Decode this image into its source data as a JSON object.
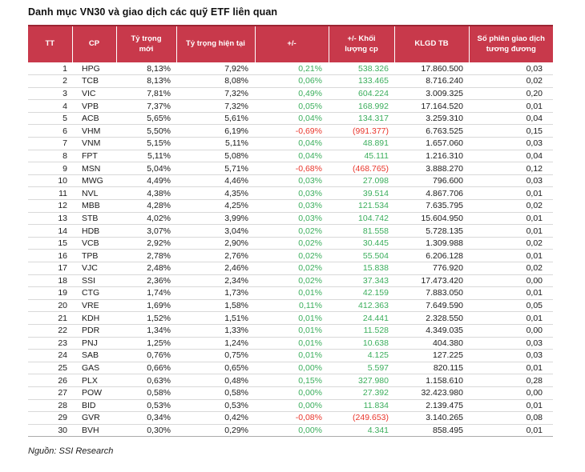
{
  "title": "Danh mục VN30 và giao dịch các quỹ ETF liên quan",
  "source_note": "Nguồn: SSI Research",
  "colors": {
    "header_bg": "#C8394B",
    "header_text": "#FFFFFF",
    "positive": "#3BAE5C",
    "negative": "#E9352B",
    "row_border": "#D9D9D9",
    "text": "#1A1A1A"
  },
  "table": {
    "columns": [
      "TT",
      "CP",
      "Tỷ trọng mới",
      "Tỷ trọng hiện tại",
      "+/-",
      "+/- Khối lượng cp",
      "KLGD TB",
      "Số phiên giao dịch tương đương"
    ],
    "row_keys": [
      "tt",
      "cp",
      "new_weight",
      "current_weight",
      "change_pct",
      "change_vol",
      "klgd_tb",
      "sessions"
    ],
    "rows": [
      {
        "tt": "1",
        "cp": "HPG",
        "new_weight": "8,13%",
        "current_weight": "7,92%",
        "change_pct": "0,21%",
        "change_vol": "538.326",
        "klgd_tb": "17.860.500",
        "sessions": "0,03",
        "direction": "positive"
      },
      {
        "tt": "2",
        "cp": "TCB",
        "new_weight": "8,13%",
        "current_weight": "8,08%",
        "change_pct": "0,06%",
        "change_vol": "133.465",
        "klgd_tb": "8.716.240",
        "sessions": "0,02",
        "direction": "positive"
      },
      {
        "tt": "3",
        "cp": "VIC",
        "new_weight": "7,81%",
        "current_weight": "7,32%",
        "change_pct": "0,49%",
        "change_vol": "604.224",
        "klgd_tb": "3.009.325",
        "sessions": "0,20",
        "direction": "positive"
      },
      {
        "tt": "4",
        "cp": "VPB",
        "new_weight": "7,37%",
        "current_weight": "7,32%",
        "change_pct": "0,05%",
        "change_vol": "168.992",
        "klgd_tb": "17.164.520",
        "sessions": "0,01",
        "direction": "positive"
      },
      {
        "tt": "5",
        "cp": "ACB",
        "new_weight": "5,65%",
        "current_weight": "5,61%",
        "change_pct": "0,04%",
        "change_vol": "134.317",
        "klgd_tb": "3.259.310",
        "sessions": "0,04",
        "direction": "positive"
      },
      {
        "tt": "6",
        "cp": "VHM",
        "new_weight": "5,50%",
        "current_weight": "6,19%",
        "change_pct": "-0,69%",
        "change_vol": "(991.377)",
        "klgd_tb": "6.763.525",
        "sessions": "0,15",
        "direction": "negative"
      },
      {
        "tt": "7",
        "cp": "VNM",
        "new_weight": "5,15%",
        "current_weight": "5,11%",
        "change_pct": "0,04%",
        "change_vol": "48.891",
        "klgd_tb": "1.657.060",
        "sessions": "0,03",
        "direction": "positive"
      },
      {
        "tt": "8",
        "cp": "FPT",
        "new_weight": "5,11%",
        "current_weight": "5,08%",
        "change_pct": "0,04%",
        "change_vol": "45.111",
        "klgd_tb": "1.216.310",
        "sessions": "0,04",
        "direction": "positive"
      },
      {
        "tt": "9",
        "cp": "MSN",
        "new_weight": "5,04%",
        "current_weight": "5,71%",
        "change_pct": "-0,68%",
        "change_vol": "(468.765)",
        "klgd_tb": "3.888.270",
        "sessions": "0,12",
        "direction": "negative"
      },
      {
        "tt": "10",
        "cp": "MWG",
        "new_weight": "4,49%",
        "current_weight": "4,46%",
        "change_pct": "0,03%",
        "change_vol": "27.098",
        "klgd_tb": "796.600",
        "sessions": "0,03",
        "direction": "positive"
      },
      {
        "tt": "11",
        "cp": "NVL",
        "new_weight": "4,38%",
        "current_weight": "4,35%",
        "change_pct": "0,03%",
        "change_vol": "39.514",
        "klgd_tb": "4.867.706",
        "sessions": "0,01",
        "direction": "positive"
      },
      {
        "tt": "12",
        "cp": "MBB",
        "new_weight": "4,28%",
        "current_weight": "4,25%",
        "change_pct": "0,03%",
        "change_vol": "121.534",
        "klgd_tb": "7.635.795",
        "sessions": "0,02",
        "direction": "positive"
      },
      {
        "tt": "13",
        "cp": "STB",
        "new_weight": "4,02%",
        "current_weight": "3,99%",
        "change_pct": "0,03%",
        "change_vol": "104.742",
        "klgd_tb": "15.604.950",
        "sessions": "0,01",
        "direction": "positive"
      },
      {
        "tt": "14",
        "cp": "HDB",
        "new_weight": "3,07%",
        "current_weight": "3,04%",
        "change_pct": "0,02%",
        "change_vol": "81.558",
        "klgd_tb": "5.728.135",
        "sessions": "0,01",
        "direction": "positive"
      },
      {
        "tt": "15",
        "cp": "VCB",
        "new_weight": "2,92%",
        "current_weight": "2,90%",
        "change_pct": "0,02%",
        "change_vol": "30.445",
        "klgd_tb": "1.309.988",
        "sessions": "0,02",
        "direction": "positive"
      },
      {
        "tt": "16",
        "cp": "TPB",
        "new_weight": "2,78%",
        "current_weight": "2,76%",
        "change_pct": "0,02%",
        "change_vol": "55.504",
        "klgd_tb": "6.206.128",
        "sessions": "0,01",
        "direction": "positive"
      },
      {
        "tt": "17",
        "cp": "VJC",
        "new_weight": "2,48%",
        "current_weight": "2,46%",
        "change_pct": "0,02%",
        "change_vol": "15.838",
        "klgd_tb": "776.920",
        "sessions": "0,02",
        "direction": "positive"
      },
      {
        "tt": "18",
        "cp": "SSI",
        "new_weight": "2,36%",
        "current_weight": "2,34%",
        "change_pct": "0,02%",
        "change_vol": "37.343",
        "klgd_tb": "17.473.420",
        "sessions": "0,00",
        "direction": "positive"
      },
      {
        "tt": "19",
        "cp": "CTG",
        "new_weight": "1,74%",
        "current_weight": "1,73%",
        "change_pct": "0,01%",
        "change_vol": "42.159",
        "klgd_tb": "7.883.050",
        "sessions": "0,01",
        "direction": "positive"
      },
      {
        "tt": "20",
        "cp": "VRE",
        "new_weight": "1,69%",
        "current_weight": "1,58%",
        "change_pct": "0,11%",
        "change_vol": "412.363",
        "klgd_tb": "7.649.590",
        "sessions": "0,05",
        "direction": "positive"
      },
      {
        "tt": "21",
        "cp": "KDH",
        "new_weight": "1,52%",
        "current_weight": "1,51%",
        "change_pct": "0,01%",
        "change_vol": "24.441",
        "klgd_tb": "2.328.550",
        "sessions": "0,01",
        "direction": "positive"
      },
      {
        "tt": "22",
        "cp": "PDR",
        "new_weight": "1,34%",
        "current_weight": "1,33%",
        "change_pct": "0,01%",
        "change_vol": "11.528",
        "klgd_tb": "4.349.035",
        "sessions": "0,00",
        "direction": "positive"
      },
      {
        "tt": "23",
        "cp": "PNJ",
        "new_weight": "1,25%",
        "current_weight": "1,24%",
        "change_pct": "0,01%",
        "change_vol": "10.638",
        "klgd_tb": "404.380",
        "sessions": "0,03",
        "direction": "positive"
      },
      {
        "tt": "24",
        "cp": "SAB",
        "new_weight": "0,76%",
        "current_weight": "0,75%",
        "change_pct": "0,01%",
        "change_vol": "4.125",
        "klgd_tb": "127.225",
        "sessions": "0,03",
        "direction": "positive"
      },
      {
        "tt": "25",
        "cp": "GAS",
        "new_weight": "0,66%",
        "current_weight": "0,65%",
        "change_pct": "0,00%",
        "change_vol": "5.597",
        "klgd_tb": "820.115",
        "sessions": "0,01",
        "direction": "positive"
      },
      {
        "tt": "26",
        "cp": "PLX",
        "new_weight": "0,63%",
        "current_weight": "0,48%",
        "change_pct": "0,15%",
        "change_vol": "327.980",
        "klgd_tb": "1.158.610",
        "sessions": "0,28",
        "direction": "positive"
      },
      {
        "tt": "27",
        "cp": "POW",
        "new_weight": "0,58%",
        "current_weight": "0,58%",
        "change_pct": "0,00%",
        "change_vol": "27.392",
        "klgd_tb": "32.423.980",
        "sessions": "0,00",
        "direction": "positive"
      },
      {
        "tt": "28",
        "cp": "BID",
        "new_weight": "0,53%",
        "current_weight": "0,53%",
        "change_pct": "0,00%",
        "change_vol": "11.834",
        "klgd_tb": "2.139.475",
        "sessions": "0,01",
        "direction": "positive"
      },
      {
        "tt": "29",
        "cp": "GVR",
        "new_weight": "0,34%",
        "current_weight": "0,42%",
        "change_pct": "-0,08%",
        "change_vol": "(249.653)",
        "klgd_tb": "3.140.265",
        "sessions": "0,08",
        "direction": "negative"
      },
      {
        "tt": "30",
        "cp": "BVH",
        "new_weight": "0,30%",
        "current_weight": "0,29%",
        "change_pct": "0,00%",
        "change_vol": "4.341",
        "klgd_tb": "858.495",
        "sessions": "0,01",
        "direction": "positive"
      }
    ]
  }
}
